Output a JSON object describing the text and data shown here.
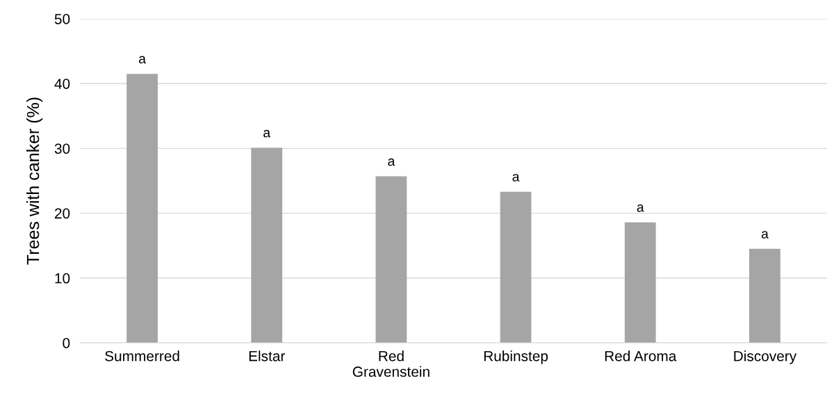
{
  "chart_data": {
    "type": "bar",
    "ylabel": "Trees with canker (%)",
    "categories": [
      "Summerred",
      "Elstar",
      "Red Gravenstein",
      "Rubinstep",
      "Red Aroma",
      "Discovery"
    ],
    "values": [
      41.5,
      30.1,
      25.7,
      23.3,
      18.6,
      14.5
    ],
    "color": "#a5a5a5",
    "ylim": [
      0,
      50
    ],
    "yticks": [
      0,
      10,
      20,
      30,
      40,
      50
    ],
    "grid": "y",
    "annotations": [
      {
        "text": "a",
        "x": "Summerred",
        "y": 41.5
      },
      {
        "text": "a",
        "x": "Elstar",
        "y": 30.1
      },
      {
        "text": "a",
        "x": "Red Gravenstein",
        "y": 25.7
      },
      {
        "text": "a",
        "x": "Rubinstep",
        "y": 23.3
      },
      {
        "text": "a",
        "x": "Red Aroma",
        "y": 18.6
      },
      {
        "text": "a",
        "x": "Discovery",
        "y": 14.5
      }
    ]
  }
}
